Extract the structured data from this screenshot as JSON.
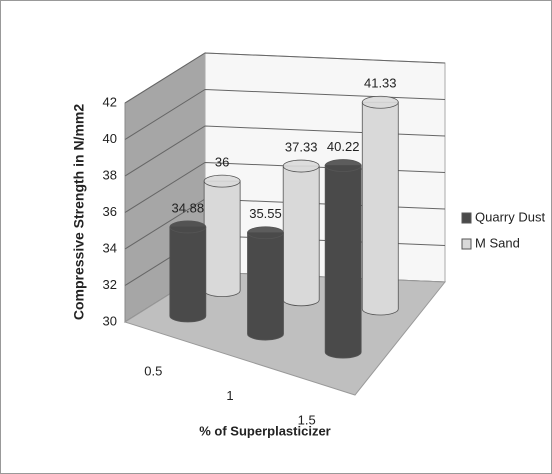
{
  "chart_data": {
    "type": "bar3d",
    "categories": [
      "0.5",
      "1",
      "1.5"
    ],
    "series": [
      {
        "name": "Quarry Dust",
        "color": "#4a4a4a",
        "values": [
          34.88,
          35.55,
          40.22
        ]
      },
      {
        "name": "M Sand",
        "color": "#d9d9d9",
        "values": [
          36,
          37.33,
          41.33
        ]
      }
    ],
    "ylim": [
      30,
      42
    ],
    "yticks": [
      30,
      32,
      34,
      36,
      38,
      40,
      42
    ],
    "xlabel": "% of Superplasticizer",
    "ylabel": "Compressive Strength in N/mm2",
    "grid": true,
    "legend": "right"
  }
}
